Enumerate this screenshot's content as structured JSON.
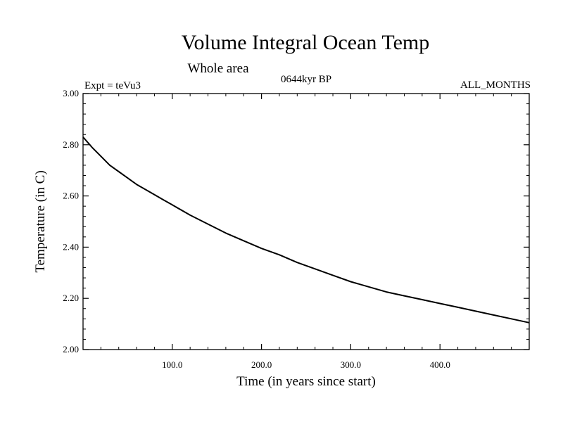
{
  "chart_data": {
    "type": "line",
    "title": "Volume Integral Ocean Temp",
    "subtitle": "Whole area",
    "experiment": "Expt = teVu3",
    "period": "0644kyr BP",
    "months": "ALL_MONTHS",
    "xlabel": "Time (in years since start)",
    "ylabel": "Temperature (in C)",
    "xlim": [
      0,
      500
    ],
    "ylim": [
      2.0,
      3.0
    ],
    "xticks": [
      100,
      200,
      300,
      400
    ],
    "xtick_labels": [
      "100.0",
      "200.0",
      "300.0",
      "400.0"
    ],
    "yticks": [
      2.0,
      2.2,
      2.4,
      2.6,
      2.8,
      3.0
    ],
    "ytick_labels": [
      "2.00",
      "2.20",
      "2.40",
      "2.60",
      "2.80",
      "3.00"
    ],
    "grid": false,
    "line_color": "#000000",
    "series": [
      {
        "x": [
          0,
          10,
          20,
          30,
          40,
          50,
          60,
          70,
          80,
          90,
          100,
          120,
          140,
          160,
          180,
          200,
          220,
          240,
          260,
          280,
          300,
          320,
          340,
          360,
          380,
          400,
          420,
          440,
          460,
          480,
          500
        ],
        "values": [
          2.83,
          2.79,
          2.755,
          2.72,
          2.695,
          2.67,
          2.645,
          2.625,
          2.605,
          2.585,
          2.565,
          2.525,
          2.49,
          2.455,
          2.425,
          2.395,
          2.37,
          2.34,
          2.315,
          2.29,
          2.265,
          2.245,
          2.225,
          2.21,
          2.195,
          2.18,
          2.165,
          2.15,
          2.135,
          2.12,
          2.105
        ]
      }
    ]
  }
}
